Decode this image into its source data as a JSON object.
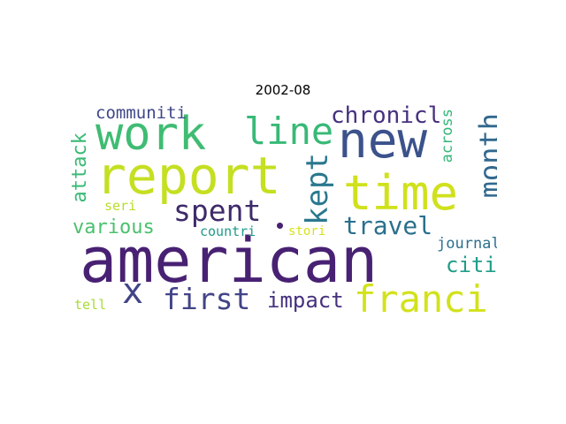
{
  "title": "2002-08",
  "words": [
    {
      "text": "american",
      "color": "#482173"
    },
    {
      "text": "report",
      "color": "#c5df21"
    },
    {
      "text": "time",
      "color": "#d0e11c"
    },
    {
      "text": "new",
      "color": "#3b528b"
    },
    {
      "text": "work",
      "color": "#3fbc73"
    },
    {
      "text": "franci",
      "color": "#d2e21b"
    },
    {
      "text": "line",
      "color": "#38b977"
    },
    {
      "text": "first",
      "color": "#414487"
    },
    {
      "text": "spent",
      "color": "#3e2a69"
    },
    {
      "text": "kept",
      "color": "#2a788e"
    },
    {
      "text": "month",
      "color": "#31688e"
    },
    {
      "text": "travel",
      "color": "#2a6f8e"
    },
    {
      "text": "chronicl",
      "color": "#46307e"
    },
    {
      "text": "x",
      "color": "#414487"
    },
    {
      "text": "attack",
      "color": "#3aba76"
    },
    {
      "text": "impact",
      "color": "#46317e"
    },
    {
      "text": "various",
      "color": "#4ac16d"
    },
    {
      "text": "citi",
      "color": "#1f9e89"
    },
    {
      "text": "communiti",
      "color": "#3f4788"
    },
    {
      "text": "across",
      "color": "#35b779"
    },
    {
      "text": "journal",
      "color": "#2d708e"
    },
    {
      "text": "countri",
      "color": "#1f9a8a"
    },
    {
      "text": "seri",
      "color": "#b8de29"
    },
    {
      "text": "stori",
      "color": "#d8e219"
    },
    {
      "text": "tell",
      "color": "#a8db34"
    }
  ]
}
